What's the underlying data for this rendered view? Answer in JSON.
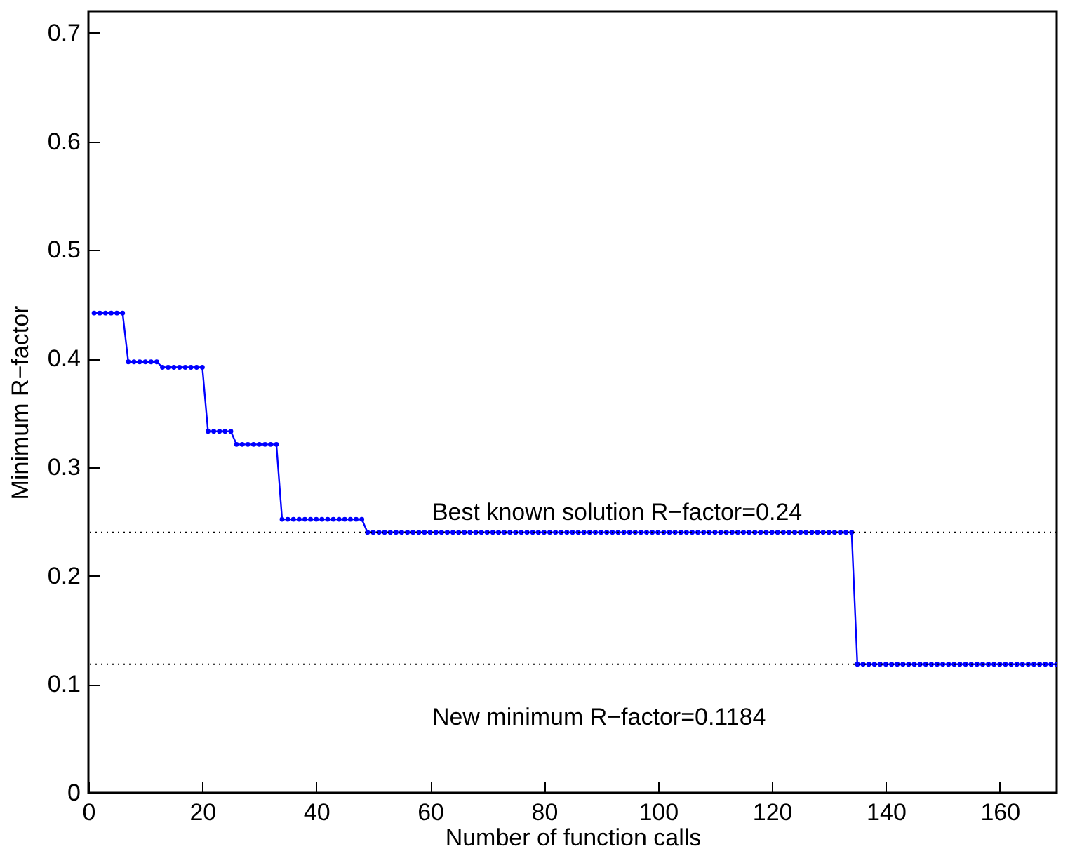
{
  "chart_data": {
    "type": "line",
    "xlabel": "Number of function calls",
    "ylabel": "Minimum R−factor",
    "xlim": [
      0,
      170
    ],
    "xticks": [
      0,
      20,
      40,
      60,
      80,
      100,
      120,
      140,
      160
    ],
    "ylim": [
      0,
      0.72
    ],
    "yticks": [
      0,
      0.1,
      0.2,
      0.3,
      0.4,
      0.5,
      0.6,
      0.7
    ],
    "grid": false,
    "marker": "circle",
    "line_style": "solid",
    "ref_lines": [
      {
        "axis": "y",
        "value": 0.24,
        "label": "Best known solution R−factor=0.24",
        "color": "#000000",
        "line_style": "dotted"
      },
      {
        "axis": "y",
        "value": 0.1184,
        "label": "New minimum R−factor=0.1184",
        "color": "#000000",
        "line_style": "dotted"
      }
    ],
    "series": [
      {
        "color": "#0000ff",
        "x": [
          1,
          2,
          3,
          4,
          5,
          6,
          7,
          8,
          9,
          10,
          11,
          12,
          13,
          14,
          15,
          16,
          17,
          18,
          19,
          20,
          21,
          22,
          23,
          24,
          25,
          26,
          27,
          28,
          29,
          30,
          31,
          32,
          33,
          34,
          35,
          36,
          37,
          38,
          39,
          40,
          41,
          42,
          43,
          44,
          45,
          46,
          47,
          48,
          49,
          50,
          51,
          52,
          53,
          54,
          55,
          56,
          57,
          58,
          59,
          60,
          61,
          62,
          63,
          64,
          65,
          66,
          67,
          68,
          69,
          70,
          71,
          72,
          73,
          74,
          75,
          76,
          77,
          78,
          79,
          80,
          81,
          82,
          83,
          84,
          85,
          86,
          87,
          88,
          89,
          90,
          91,
          92,
          93,
          94,
          95,
          96,
          97,
          98,
          99,
          100,
          101,
          102,
          103,
          104,
          105,
          106,
          107,
          108,
          109,
          110,
          111,
          112,
          113,
          114,
          115,
          116,
          117,
          118,
          119,
          120,
          121,
          122,
          123,
          124,
          125,
          126,
          127,
          128,
          129,
          130,
          131,
          132,
          133,
          134,
          135,
          136,
          137,
          138,
          139,
          140,
          141,
          142,
          143,
          144,
          145,
          146,
          147,
          148,
          149,
          150,
          151,
          152,
          153,
          154,
          155,
          156,
          157,
          158,
          159,
          160,
          161,
          162,
          163,
          164,
          165,
          166,
          167,
          168,
          169,
          170
        ],
        "values": [
          0.442,
          0.442,
          0.442,
          0.442,
          0.442,
          0.442,
          0.397,
          0.397,
          0.397,
          0.397,
          0.397,
          0.397,
          0.392,
          0.392,
          0.392,
          0.392,
          0.392,
          0.392,
          0.392,
          0.392,
          0.333,
          0.333,
          0.333,
          0.333,
          0.333,
          0.321,
          0.321,
          0.321,
          0.321,
          0.321,
          0.321,
          0.321,
          0.321,
          0.252,
          0.252,
          0.252,
          0.252,
          0.252,
          0.252,
          0.252,
          0.252,
          0.252,
          0.252,
          0.252,
          0.252,
          0.252,
          0.252,
          0.252,
          0.24,
          0.24,
          0.24,
          0.24,
          0.24,
          0.24,
          0.24,
          0.24,
          0.24,
          0.24,
          0.24,
          0.24,
          0.24,
          0.24,
          0.24,
          0.24,
          0.24,
          0.24,
          0.24,
          0.24,
          0.24,
          0.24,
          0.24,
          0.24,
          0.24,
          0.24,
          0.24,
          0.24,
          0.24,
          0.24,
          0.24,
          0.24,
          0.24,
          0.24,
          0.24,
          0.24,
          0.24,
          0.24,
          0.24,
          0.24,
          0.24,
          0.24,
          0.24,
          0.24,
          0.24,
          0.24,
          0.24,
          0.24,
          0.24,
          0.24,
          0.24,
          0.24,
          0.24,
          0.24,
          0.24,
          0.24,
          0.24,
          0.24,
          0.24,
          0.24,
          0.24,
          0.24,
          0.24,
          0.24,
          0.24,
          0.24,
          0.24,
          0.24,
          0.24,
          0.24,
          0.24,
          0.24,
          0.24,
          0.24,
          0.24,
          0.24,
          0.24,
          0.24,
          0.24,
          0.24,
          0.24,
          0.24,
          0.24,
          0.24,
          0.24,
          0.24,
          0.1184,
          0.1184,
          0.1184,
          0.1184,
          0.1184,
          0.1184,
          0.1184,
          0.1184,
          0.1184,
          0.1184,
          0.1184,
          0.1184,
          0.1184,
          0.1184,
          0.1184,
          0.1184,
          0.1184,
          0.1184,
          0.1184,
          0.1184,
          0.1184,
          0.1184,
          0.1184,
          0.1184,
          0.1184,
          0.1184,
          0.1184,
          0.1184,
          0.1184,
          0.1184,
          0.1184,
          0.1184,
          0.1184,
          0.1184,
          0.1184,
          0.1184
        ]
      }
    ]
  }
}
